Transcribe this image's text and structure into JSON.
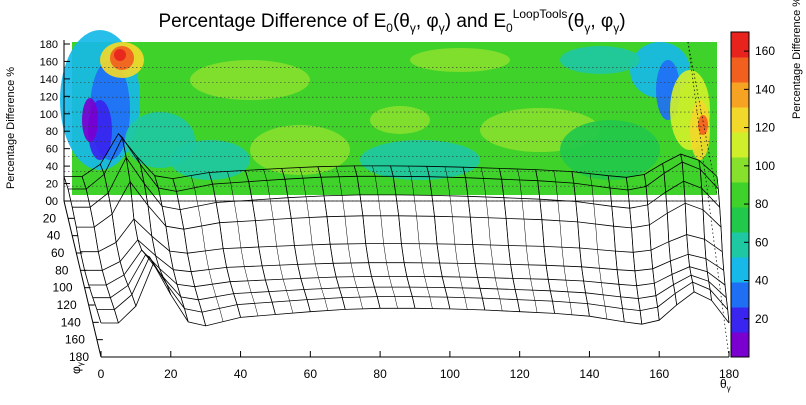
{
  "chart_data": {
    "type": "surface",
    "title": {
      "prefix": "Percentage Difference of E",
      "sub0": "0",
      "paren1_open": "(θ",
      "gamma": "γ",
      "comma": ", φ",
      "paren_close": ")",
      "middle": " and E",
      "sub1": "0",
      "sup1": "LoopTools"
    },
    "xlabel": "θ",
    "xlabel_sub": "γ",
    "ylabel": "φ",
    "ylabel_sub": "γ",
    "zlabel": "Percentage Difference %",
    "colorbar_label": "Percentage Difference %",
    "x_range": [
      0,
      180
    ],
    "y_range": [
      0,
      180
    ],
    "z_range": [
      0,
      180
    ],
    "colorbar_range": [
      0,
      170
    ],
    "x_ticks": [
      0,
      20,
      40,
      60,
      80,
      100,
      120,
      140,
      160,
      180
    ],
    "y_ticks": [
      0,
      20,
      40,
      60,
      80,
      100,
      120,
      140,
      160,
      180
    ],
    "z_ticks": [
      0,
      20,
      40,
      60,
      80,
      100,
      120,
      140,
      160,
      180
    ],
    "colorbar_ticks": [
      20,
      40,
      60,
      80,
      100,
      120,
      140,
      160
    ],
    "grid": true,
    "theta": [
      0,
      5,
      10,
      15,
      20,
      25,
      30,
      40,
      50,
      60,
      70,
      80,
      90,
      100,
      110,
      120,
      130,
      140,
      150,
      155,
      160,
      165,
      170,
      175,
      180
    ],
    "phi": [
      0,
      20,
      40,
      60,
      80,
      100,
      120,
      140,
      160,
      180
    ],
    "theta_profile": [
      60,
      60,
      90,
      165,
      110,
      62,
      55,
      70,
      75,
      80,
      84,
      86,
      86,
      85,
      83,
      80,
      77,
      72,
      62,
      58,
      65,
      92,
      115,
      100,
      60
    ],
    "phi_profile": [
      0.85,
      1.0,
      0.95,
      0.85,
      0.6,
      0.55,
      0.62,
      0.75,
      0.9,
      1.0
    ],
    "contour_colors": [
      "#7a00d0",
      "#3a24f0",
      "#1f6ff5",
      "#16b9e8",
      "#1ec8a2",
      "#22c84a",
      "#3fd22a",
      "#86e02c",
      "#cfef2a",
      "#f2d82a",
      "#f6a223",
      "#f26020",
      "#e8231e"
    ]
  }
}
